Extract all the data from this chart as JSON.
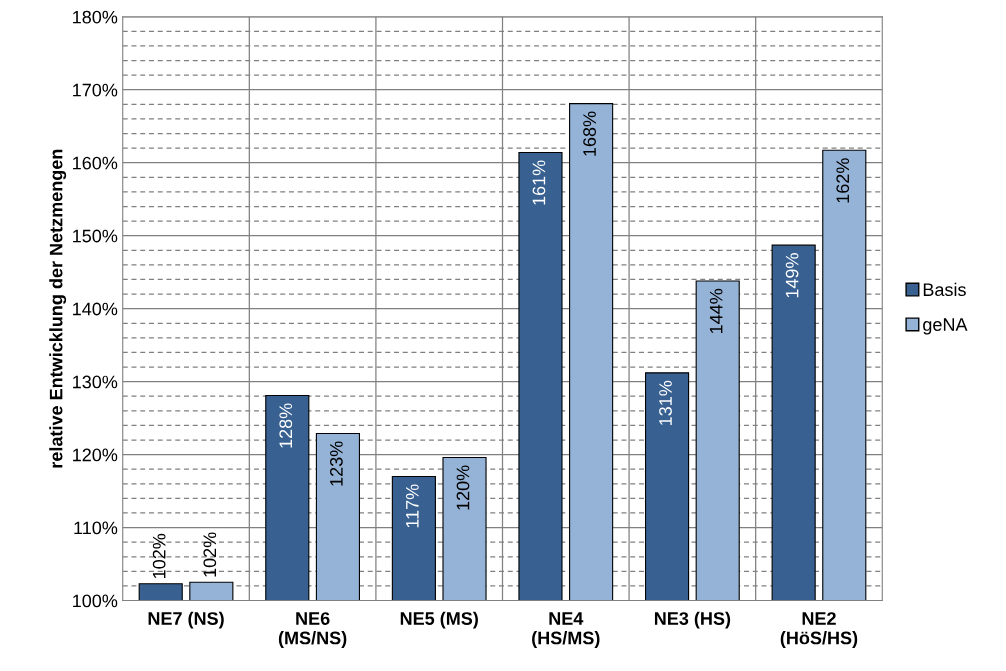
{
  "chart_data": {
    "type": "bar",
    "ylabel": "relative Entwicklung der Netzmengen",
    "categories": [
      "NE7 (NS)",
      "NE6\n(MS/NS)",
      "NE5 (MS)",
      "NE4\n(HS/MS)",
      "NE3 (HS)",
      "NE2\n(HöS/HS)"
    ],
    "series": [
      {
        "name": "Basis",
        "color": "#386192",
        "values": [
          102.3,
          128.1,
          117.0,
          161.4,
          131.2,
          148.7
        ],
        "value_labels": [
          "102%",
          "128%",
          "117%",
          "161%",
          "131%",
          "149%"
        ]
      },
      {
        "name": "geNA",
        "color": "#95b3d7",
        "values": [
          102.5,
          122.9,
          119.6,
          168.1,
          143.8,
          161.7
        ],
        "value_labels": [
          "102%",
          "123%",
          "120%",
          "168%",
          "144%",
          "162%"
        ]
      }
    ],
    "ylim": [
      100,
      180
    ],
    "yticks": [
      {
        "value": 100,
        "label": "100%"
      },
      {
        "value": 102,
        "label": null
      },
      {
        "value": 104,
        "label": null
      },
      {
        "value": 106,
        "label": null
      },
      {
        "value": 108,
        "label": null
      },
      {
        "value": 110,
        "label": "110%"
      },
      {
        "value": 112,
        "label": null
      },
      {
        "value": 114,
        "label": null
      },
      {
        "value": 116,
        "label": null
      },
      {
        "value": 118,
        "label": null
      },
      {
        "value": 120,
        "label": "120%"
      },
      {
        "value": 122,
        "label": null
      },
      {
        "value": 124,
        "label": null
      },
      {
        "value": 126,
        "label": null
      },
      {
        "value": 128,
        "label": null
      },
      {
        "value": 130,
        "label": "130%"
      },
      {
        "value": 132,
        "label": null
      },
      {
        "value": 134,
        "label": null
      },
      {
        "value": 136,
        "label": null
      },
      {
        "value": 138,
        "label": null
      },
      {
        "value": 140,
        "label": "140%"
      },
      {
        "value": 142,
        "label": null
      },
      {
        "value": 144,
        "label": null
      },
      {
        "value": 146,
        "label": null
      },
      {
        "value": 148,
        "label": null
      },
      {
        "value": 150,
        "label": "150%"
      },
      {
        "value": 152,
        "label": null
      },
      {
        "value": 154,
        "label": null
      },
      {
        "value": 156,
        "label": null
      },
      {
        "value": 158,
        "label": null
      },
      {
        "value": 160,
        "label": "160%"
      },
      {
        "value": 162,
        "label": null
      },
      {
        "value": 164,
        "label": null
      },
      {
        "value": 166,
        "label": null
      },
      {
        "value": 168,
        "label": null
      },
      {
        "value": 170,
        "label": "170%"
      },
      {
        "value": 172,
        "label": null
      },
      {
        "value": 174,
        "label": null
      },
      {
        "value": 176,
        "label": null
      },
      {
        "value": 178,
        "label": null
      },
      {
        "value": 180,
        "label": "180%"
      }
    ],
    "grid": true,
    "legend": "right"
  }
}
